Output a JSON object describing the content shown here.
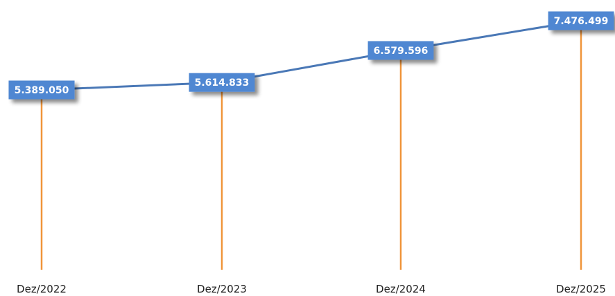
{
  "chart_data": {
    "type": "line",
    "categories": [
      "Dez/2022",
      "Dez/2023",
      "Dez/2024",
      "Dez/2025"
    ],
    "values": [
      5389050,
      5614833,
      6579596,
      7476499
    ],
    "value_labels": [
      "5.389.050",
      "5.614.833",
      "6.579.596",
      "7.476.499"
    ],
    "color": "#4a78b6",
    "drop_line_color": "#f0953a",
    "label_color": "#4f87d2"
  }
}
